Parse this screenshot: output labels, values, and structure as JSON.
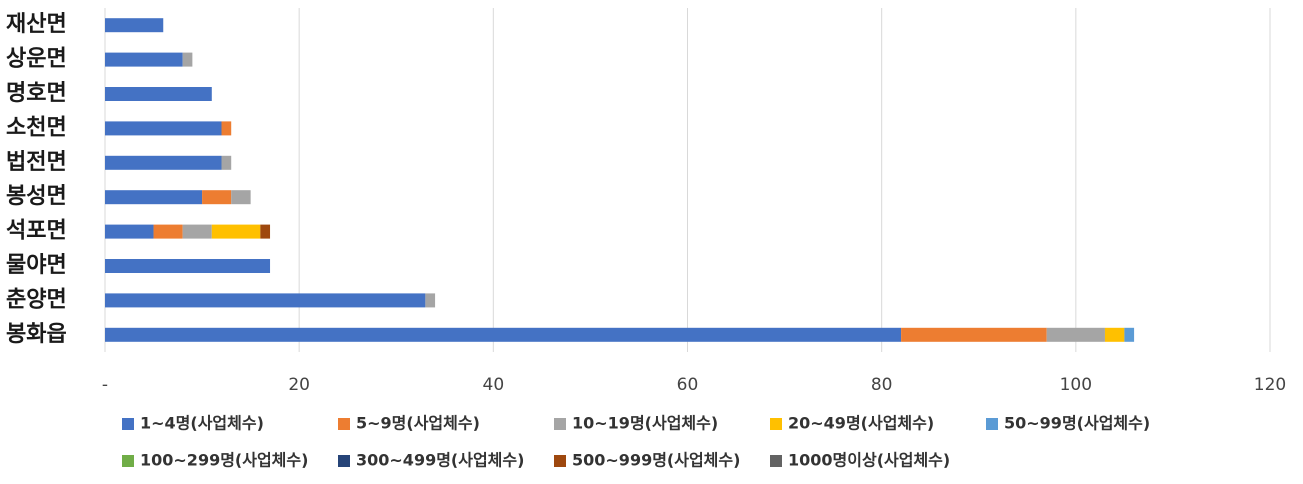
{
  "chart_data": {
    "type": "stacked-hbar",
    "categories": [
      "재산면",
      "상운면",
      "명호면",
      "소천면",
      "법전면",
      "봉성면",
      "석포면",
      "물야면",
      "춘양면",
      "봉화읍"
    ],
    "series": [
      {
        "name": "1~4명(사업체수)",
        "color": "#4472c4",
        "values": [
          6,
          8,
          11,
          12,
          12,
          10,
          5,
          17,
          33,
          82
        ]
      },
      {
        "name": "5~9명(사업체수)",
        "color": "#ed7d31",
        "values": [
          0,
          0,
          0,
          1,
          0,
          3,
          3,
          0,
          0,
          15
        ]
      },
      {
        "name": "10~19명(사업체수)",
        "color": "#a5a5a5",
        "values": [
          0,
          1,
          0,
          0,
          1,
          2,
          3,
          0,
          1,
          6
        ]
      },
      {
        "name": "20~49명(사업체수)",
        "color": "#ffc000",
        "values": [
          0,
          0,
          0,
          0,
          0,
          0,
          5,
          0,
          0,
          2
        ]
      },
      {
        "name": "50~99명(사업체수)",
        "color": "#5b9bd5",
        "values": [
          0,
          0,
          0,
          0,
          0,
          0,
          0,
          0,
          0,
          1
        ]
      },
      {
        "name": "100~299명(사업체수)",
        "color": "#70ad47",
        "values": [
          0,
          0,
          0,
          0,
          0,
          0,
          0,
          0,
          0,
          0
        ]
      },
      {
        "name": "300~499명(사업체수)",
        "color": "#264478",
        "values": [
          0,
          0,
          0,
          0,
          0,
          0,
          0,
          0,
          0,
          0
        ]
      },
      {
        "name": "500~999명(사업체수)",
        "color": "#9e480e",
        "values": [
          0,
          0,
          0,
          0,
          0,
          0,
          1,
          0,
          0,
          0
        ]
      },
      {
        "name": "1000명이상(사업체수)",
        "color": "#636363",
        "values": [
          0,
          0,
          0,
          0,
          0,
          0,
          0,
          0,
          0,
          0
        ]
      }
    ],
    "xlim": [
      0,
      120
    ],
    "xticks": [
      {
        "value": 0,
        "label": "-"
      },
      20,
      40,
      60,
      80,
      100,
      120
    ],
    "grid": true
  }
}
